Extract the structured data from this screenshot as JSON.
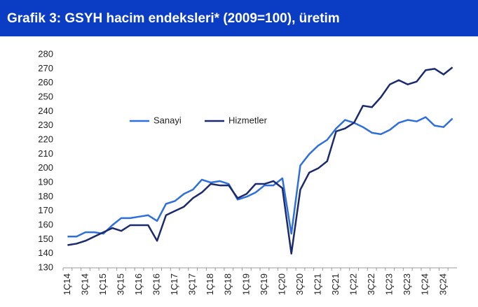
{
  "chart_data": {
    "type": "line",
    "title": "Grafik 3: GSYH hacim endeksleri* (2009=100), üretim",
    "categories": [
      "1Ç14",
      null,
      "3Ç14",
      null,
      "1Ç15",
      null,
      "3Ç15",
      null,
      "1Ç16",
      null,
      "3Ç16",
      null,
      "1Ç17",
      null,
      "3Ç17",
      null,
      "1Ç18",
      null,
      "3Ç18",
      null,
      "1Ç19",
      null,
      "3Ç19",
      null,
      "1Ç20",
      null,
      "3Ç20",
      null,
      "1Ç21",
      null,
      "3Ç21",
      null,
      "1Ç22",
      null,
      "3Ç22",
      null,
      "1Ç23",
      null,
      "3Ç23",
      null,
      "1Ç24",
      null,
      "3Ç24",
      null
    ],
    "series": [
      {
        "name": "Sanayi",
        "color": "#2f6fdc",
        "values": [
          152,
          152,
          155,
          155,
          154,
          160,
          165,
          165,
          166,
          167,
          163,
          175,
          177,
          182,
          185,
          192,
          190,
          191,
          189,
          178,
          180,
          183,
          188,
          188,
          193,
          154,
          202,
          210,
          216,
          220,
          228,
          234,
          232,
          229,
          225,
          224,
          227,
          232,
          234,
          233,
          236,
          230,
          229,
          235
        ]
      },
      {
        "name": "Hizmetler",
        "color": "#1a2a6c",
        "values": [
          146,
          147,
          149,
          152,
          155,
          158,
          156,
          160,
          160,
          160,
          149,
          167,
          170,
          173,
          179,
          183,
          189,
          188,
          188,
          179,
          182,
          189,
          189,
          191,
          186,
          140,
          185,
          197,
          200,
          205,
          226,
          228,
          232,
          244,
          243,
          250,
          259,
          262,
          259,
          261,
          269,
          270,
          266,
          271
        ]
      }
    ],
    "ylim": [
      130,
      280
    ],
    "yticks": [
      130,
      140,
      150,
      160,
      170,
      180,
      190,
      200,
      210,
      220,
      230,
      240,
      250,
      260,
      270,
      280
    ],
    "grid": false,
    "legend": "upper left"
  }
}
